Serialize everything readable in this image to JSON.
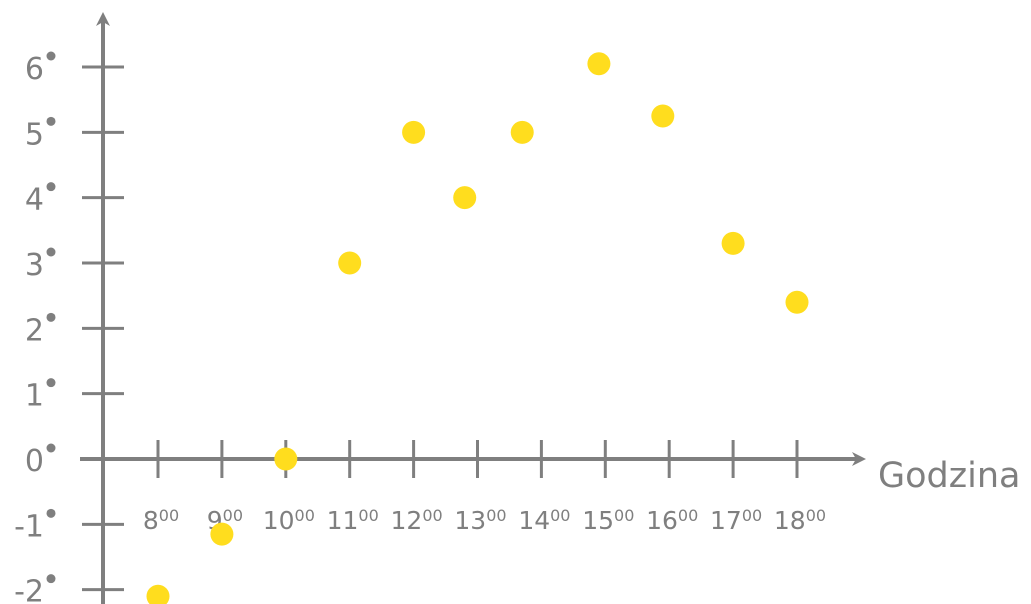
{
  "chart_data": {
    "type": "scatter",
    "title": "",
    "xlabel": "Godzina",
    "ylabel": "",
    "x": [
      "8",
      "9",
      "10",
      "11",
      "12",
      "13",
      "14",
      "15",
      "16",
      "17",
      "18"
    ],
    "x_superscript": "00",
    "y_ticks": [
      6,
      5,
      4,
      3,
      2,
      1,
      0,
      -1,
      -2
    ],
    "y_tick_labels": [
      "6",
      "5",
      "4",
      "3",
      "2",
      "1",
      "0",
      "-1",
      "-2"
    ],
    "points": [
      {
        "x": 8,
        "y": -2.1
      },
      {
        "x": 9,
        "y": -1.15
      },
      {
        "x": 10,
        "y": 0
      },
      {
        "x": 11,
        "y": 3
      },
      {
        "x": 12,
        "y": 5
      },
      {
        "x": 12.8,
        "y": 4
      },
      {
        "x": 13.7,
        "y": 5
      },
      {
        "x": 14.9,
        "y": 6.05
      },
      {
        "x": 15.9,
        "y": 5.25
      },
      {
        "x": 17,
        "y": 3.3
      },
      {
        "x": 18,
        "y": 2.4
      }
    ],
    "xlim": [
      7.1,
      19.1
    ],
    "ylim": [
      -2.2,
      6.8
    ],
    "grid": false,
    "colors": {
      "axis": "#7f7f7f",
      "points": "#ffdd1e"
    }
  }
}
